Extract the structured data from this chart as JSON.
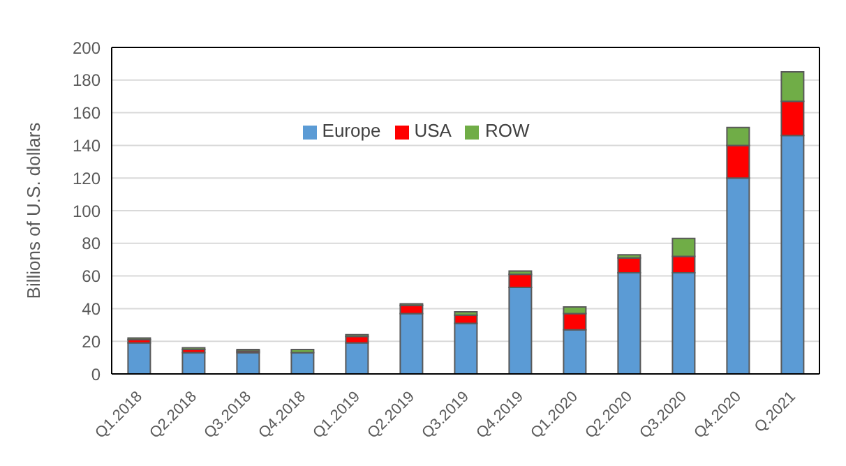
{
  "chart_data": {
    "type": "bar",
    "stacked": true,
    "ylabel": "Billions of U.S. dollars",
    "categories": [
      "Q1.2018",
      "Q2.2018",
      "Q3.2018",
      "Q4.2018",
      "Q1.2019",
      "Q2.2019",
      "Q3.2019",
      "Q4.2019",
      "Q1.2020",
      "Q2.2020",
      "Q3.2020",
      "Q4.2020",
      "Q.2021"
    ],
    "series": [
      {
        "name": "Europe",
        "color": "#5b9bd5",
        "values": [
          19,
          13,
          13,
          13,
          19,
          37,
          31,
          53,
          27,
          62,
          62,
          120,
          146
        ]
      },
      {
        "name": "USA",
        "color": "#ff0000",
        "values": [
          2,
          2,
          1,
          null,
          4,
          5,
          5,
          8,
          10,
          9,
          10,
          20,
          21
        ]
      },
      {
        "name": "ROW",
        "color": "#70ad47",
        "values": [
          1,
          1,
          1,
          2,
          1,
          1,
          2,
          2,
          4,
          2,
          11,
          11,
          18
        ]
      }
    ],
    "ylim": [
      0,
      200
    ],
    "yticks": [
      0,
      20,
      40,
      60,
      80,
      100,
      120,
      140,
      160,
      180,
      200
    ],
    "grid": "y",
    "legend": "top"
  }
}
